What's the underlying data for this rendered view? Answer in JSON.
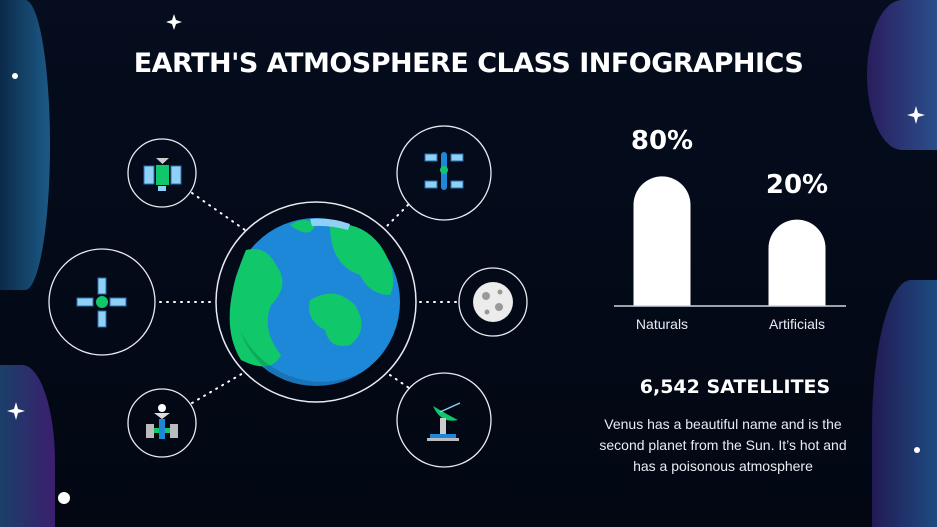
{
  "title": "EARTH'S ATMOSPHERE CLASS INFOGRAPHICS",
  "icons": [
    "satellite-icon",
    "space-station-icon",
    "satellite-cross-icon",
    "moon-icon",
    "rover-icon",
    "radio-telescope-icon",
    "earth-icon"
  ],
  "colors": {
    "background": "#020814",
    "earth_ocean": "#1e88d8",
    "earth_land": "#10c86a",
    "bar": "#ffffff"
  },
  "chart_data": {
    "type": "bar",
    "categories": [
      "Naturals",
      "Artificials"
    ],
    "values": [
      80,
      20
    ],
    "value_labels": [
      "80%",
      "20%"
    ],
    "title": "",
    "xlabel": "",
    "ylabel": "",
    "grid": false
  },
  "stat": {
    "title": "6,542 SATELLITES",
    "description": "Venus has a beautiful name and is the second planet from the Sun. It’s hot and has a poisonous atmosphere"
  }
}
